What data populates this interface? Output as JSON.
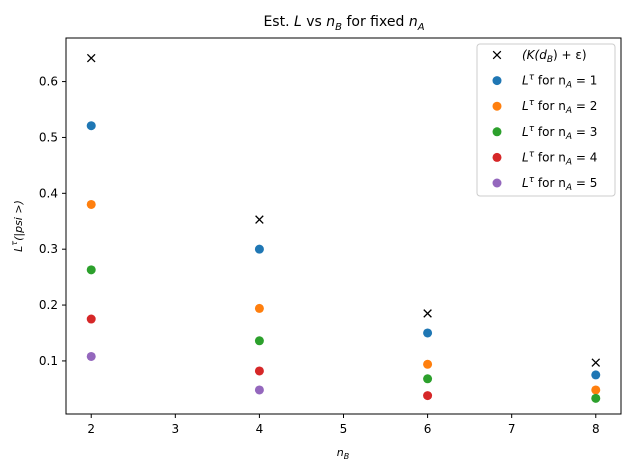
{
  "chart_data": {
    "type": "scatter",
    "title": "Est. L vs n_B for fixed n_A",
    "title_parts": [
      "Est. ",
      "L",
      " vs ",
      "n",
      "B",
      " for fixed ",
      "n",
      "A"
    ],
    "xlabel": "n_B",
    "xlabel_parts": [
      "n",
      "B"
    ],
    "ylabel": "L^τ(|psi>)",
    "ylabel_parts": [
      "L",
      "τ",
      "(|psi >)"
    ],
    "xlim": [
      1.7,
      8.3
    ],
    "ylim": [
      0.005,
      0.678
    ],
    "xticks": [
      2,
      3,
      4,
      5,
      6,
      7,
      8
    ],
    "yticks": [
      0.1,
      0.2,
      0.3,
      0.4,
      0.5,
      0.6
    ],
    "ytick_labels": [
      "0.1",
      "0.2",
      "0.3",
      "0.4",
      "0.5",
      "0.6"
    ],
    "grid": false,
    "legend_position": "top-right",
    "series": [
      {
        "name": "(K(d_B) + ε)",
        "label_parts": [
          "(K(d",
          "B",
          ") + ε)"
        ],
        "marker": "x",
        "color": "#000000",
        "x": [
          2,
          4,
          6,
          8
        ],
        "values": [
          0.642,
          0.353,
          0.185,
          0.097
        ]
      },
      {
        "name": "L^τ for n_A = 1",
        "label_parts": [
          "L",
          "τ",
          " for n",
          "A",
          " = 1"
        ],
        "marker": "o",
        "color": "#1f77b4",
        "x": [
          2,
          4,
          6,
          8
        ],
        "values": [
          0.521,
          0.3,
          0.15,
          0.075
        ]
      },
      {
        "name": "L^τ for n_A = 2",
        "label_parts": [
          "L",
          "τ",
          " for n",
          "A",
          " = 2"
        ],
        "marker": "o",
        "color": "#ff7f0e",
        "x": [
          2,
          4,
          6,
          8
        ],
        "values": [
          0.38,
          0.194,
          0.094,
          0.048
        ]
      },
      {
        "name": "L^τ for n_A = 3",
        "label_parts": [
          "L",
          "τ",
          " for n",
          "A",
          " = 3"
        ],
        "marker": "o",
        "color": "#2ca02c",
        "x": [
          2,
          4,
          6,
          8
        ],
        "values": [
          0.263,
          0.136,
          0.068,
          0.033
        ]
      },
      {
        "name": "L^τ for n_A = 4",
        "label_parts": [
          "L",
          "τ",
          " for n",
          "A",
          " = 4"
        ],
        "marker": "o",
        "color": "#d62728",
        "x": [
          2,
          4,
          6
        ],
        "values": [
          0.175,
          0.082,
          0.038
        ]
      },
      {
        "name": "L^τ for n_A = 5",
        "label_parts": [
          "L",
          "τ",
          " for n",
          "A",
          " = 5"
        ],
        "marker": "o",
        "color": "#9467bd",
        "x": [
          2,
          4
        ],
        "values": [
          0.108,
          0.048
        ]
      }
    ]
  }
}
